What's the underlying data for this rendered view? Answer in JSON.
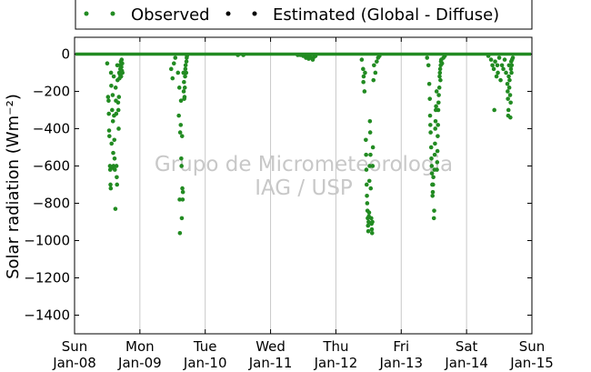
{
  "chart_data": {
    "type": "scatter",
    "ylabel": "Solar radiation (Wm⁻²)",
    "ylim": [
      -1500,
      90
    ],
    "yticks": [
      0,
      -200,
      -400,
      -600,
      -800,
      -1000,
      -1200,
      -1400
    ],
    "xlim": [
      "2012-01-08 00:00",
      "2012-01-15 00:00"
    ],
    "xticks": [
      {
        "value": "2012-01-08",
        "line1": "Sun",
        "line2": "Jan-08"
      },
      {
        "value": "2012-01-09",
        "line1": "Mon",
        "line2": "Jan-09"
      },
      {
        "value": "2012-01-10",
        "line1": "Tue",
        "line2": "Jan-10"
      },
      {
        "value": "2012-01-11",
        "line1": "Wed",
        "line2": "Jan-11"
      },
      {
        "value": "2012-01-12",
        "line1": "Thu",
        "line2": "Jan-12"
      },
      {
        "value": "2012-01-13",
        "line1": "Fri",
        "line2": "Jan-13"
      },
      {
        "value": "2012-01-14",
        "line1": "Sat",
        "line2": "Jan-14"
      },
      {
        "value": "2012-01-15",
        "line1": "Sun",
        "line2": "Jan-15"
      }
    ],
    "grid": "vertical",
    "legend_position": "top-center",
    "series": [
      {
        "name": "Observed",
        "color": "#228b22",
        "daytime_windows": [
          {
            "start": "2012-01-08 07:00",
            "end": "2012-01-08 18:00"
          },
          {
            "start": "2012-01-09 07:00",
            "end": "2012-01-09 18:00"
          },
          {
            "start": "2012-01-10 07:00",
            "end": "2012-01-10 18:00"
          },
          {
            "start": "2012-01-11 07:00",
            "end": "2012-01-11 18:00"
          },
          {
            "start": "2012-01-12 07:00",
            "end": "2012-01-12 18:00"
          },
          {
            "start": "2012-01-13 07:00",
            "end": "2012-01-13 18:00"
          },
          {
            "start": "2012-01-14 07:00",
            "end": "2012-01-14 18:00"
          }
        ],
        "points": [
          [
            "2012-01-08 12:00",
            -50
          ],
          [
            "2012-01-08 12:18",
            -230
          ],
          [
            "2012-01-08 12:30",
            -250
          ],
          [
            "2012-01-08 12:36",
            -320
          ],
          [
            "2012-01-08 12:42",
            -410
          ],
          [
            "2012-01-08 12:48",
            -440
          ],
          [
            "2012-01-08 13:00",
            -600
          ],
          [
            "2012-01-08 13:06",
            -620
          ],
          [
            "2012-01-08 13:12",
            -700
          ],
          [
            "2012-01-08 13:18",
            -720
          ],
          [
            "2012-01-08 13:24",
            -100
          ],
          [
            "2012-01-08 13:30",
            -170
          ],
          [
            "2012-01-08 13:36",
            -480
          ],
          [
            "2012-01-08 13:42",
            -610
          ],
          [
            "2012-01-08 13:48",
            -300
          ],
          [
            "2012-01-08 14:00",
            -220
          ],
          [
            "2012-01-08 14:06",
            -360
          ],
          [
            "2012-01-08 14:12",
            -530
          ],
          [
            "2012-01-08 14:18",
            -600
          ],
          [
            "2012-01-08 14:24",
            -120
          ],
          [
            "2012-01-08 14:30",
            -330
          ],
          [
            "2012-01-08 14:36",
            -460
          ],
          [
            "2012-01-08 14:42",
            -560
          ],
          [
            "2012-01-08 14:48",
            -620
          ],
          [
            "2012-01-08 15:00",
            -830
          ],
          [
            "2012-01-08 15:06",
            -180
          ],
          [
            "2012-01-08 15:12",
            -250
          ],
          [
            "2012-01-08 15:18",
            -320
          ],
          [
            "2012-01-08 15:24",
            -600
          ],
          [
            "2012-01-08 15:30",
            -660
          ],
          [
            "2012-01-08 15:36",
            -700
          ],
          [
            "2012-01-08 15:42",
            -60
          ],
          [
            "2012-01-08 15:48",
            -140
          ],
          [
            "2012-01-08 16:00",
            -260
          ],
          [
            "2012-01-08 16:06",
            -300
          ],
          [
            "2012-01-08 16:12",
            -400
          ],
          [
            "2012-01-08 16:18",
            -230
          ],
          [
            "2012-01-08 16:24",
            -100
          ],
          [
            "2012-01-08 16:30",
            -130
          ],
          [
            "2012-01-08 16:36",
            -60
          ],
          [
            "2012-01-08 16:42",
            -110
          ],
          [
            "2012-01-08 16:48",
            -80
          ],
          [
            "2012-01-08 17:00",
            -40
          ],
          [
            "2012-01-08 17:06",
            -120
          ],
          [
            "2012-01-08 17:12",
            -70
          ],
          [
            "2012-01-08 17:18",
            -30
          ],
          [
            "2012-01-08 17:24",
            -90
          ],
          [
            "2012-01-08 17:30",
            -50
          ],
          [
            "2012-01-08 17:36",
            -100
          ],
          [
            "2012-01-09 11:30",
            -80
          ],
          [
            "2012-01-09 12:00",
            -130
          ],
          [
            "2012-01-09 12:30",
            -50
          ],
          [
            "2012-01-09 13:00",
            -20
          ],
          [
            "2012-01-09 14:00",
            -100
          ],
          [
            "2012-01-09 14:18",
            -330
          ],
          [
            "2012-01-09 14:30",
            -180
          ],
          [
            "2012-01-09 14:36",
            -780
          ],
          [
            "2012-01-09 14:42",
            -960
          ],
          [
            "2012-01-09 14:48",
            -420
          ],
          [
            "2012-01-09 15:00",
            -380
          ],
          [
            "2012-01-09 15:06",
            -250
          ],
          [
            "2012-01-09 15:12",
            -560
          ],
          [
            "2012-01-09 15:18",
            -600
          ],
          [
            "2012-01-09 15:24",
            -880
          ],
          [
            "2012-01-09 15:30",
            -440
          ],
          [
            "2012-01-09 15:36",
            -720
          ],
          [
            "2012-01-09 15:42",
            -780
          ],
          [
            "2012-01-09 15:48",
            -740
          ],
          [
            "2012-01-09 16:00",
            -100
          ],
          [
            "2012-01-09 16:06",
            -200
          ],
          [
            "2012-01-09 16:12",
            -150
          ],
          [
            "2012-01-09 16:18",
            -240
          ],
          [
            "2012-01-09 16:24",
            -230
          ],
          [
            "2012-01-09 16:30",
            -180
          ],
          [
            "2012-01-09 16:36",
            -120
          ],
          [
            "2012-01-09 16:42",
            -80
          ],
          [
            "2012-01-09 16:48",
            -60
          ],
          [
            "2012-01-09 17:00",
            -100
          ],
          [
            "2012-01-09 17:06",
            -40
          ],
          [
            "2012-01-09 17:12",
            -20
          ],
          [
            "2012-01-09 17:18",
            -10
          ],
          [
            "2012-01-10 12:00",
            -5
          ],
          [
            "2012-01-10 14:00",
            -5
          ],
          [
            "2012-01-11 10:00",
            -5
          ],
          [
            "2012-01-11 11:00",
            -5
          ],
          [
            "2012-01-11 12:00",
            -10
          ],
          [
            "2012-01-11 12:30",
            -5
          ],
          [
            "2012-01-11 13:00",
            -20
          ],
          [
            "2012-01-11 13:30",
            -10
          ],
          [
            "2012-01-11 14:00",
            -25
          ],
          [
            "2012-01-11 14:30",
            -15
          ],
          [
            "2012-01-11 15:00",
            -20
          ],
          [
            "2012-01-11 15:30",
            -30
          ],
          [
            "2012-01-11 16:00",
            -15
          ],
          [
            "2012-01-11 16:30",
            -10
          ],
          [
            "2012-01-12 09:30",
            -30
          ],
          [
            "2012-01-12 10:00",
            -80
          ],
          [
            "2012-01-12 10:06",
            -150
          ],
          [
            "2012-01-12 10:12",
            -120
          ],
          [
            "2012-01-12 10:30",
            -200
          ],
          [
            "2012-01-12 10:42",
            -100
          ],
          [
            "2012-01-12 11:00",
            -460
          ],
          [
            "2012-01-12 11:06",
            -540
          ],
          [
            "2012-01-12 11:12",
            -620
          ],
          [
            "2012-01-12 11:18",
            -700
          ],
          [
            "2012-01-12 11:24",
            -760
          ],
          [
            "2012-01-12 11:30",
            -800
          ],
          [
            "2012-01-12 11:36",
            -840
          ],
          [
            "2012-01-12 11:42",
            -880
          ],
          [
            "2012-01-12 11:48",
            -920
          ],
          [
            "2012-01-12 11:54",
            -950
          ],
          [
            "2012-01-12 12:00",
            -900
          ],
          [
            "2012-01-12 12:06",
            -870
          ],
          [
            "2012-01-12 12:12",
            -850
          ],
          [
            "2012-01-12 12:18",
            -680
          ],
          [
            "2012-01-12 12:24",
            -600
          ],
          [
            "2012-01-12 12:30",
            -360
          ],
          [
            "2012-01-12 12:36",
            -420
          ],
          [
            "2012-01-12 12:42",
            -540
          ],
          [
            "2012-01-12 12:48",
            -720
          ],
          [
            "2012-01-12 13:00",
            -880
          ],
          [
            "2012-01-12 13:06",
            -910
          ],
          [
            "2012-01-12 13:12",
            -940
          ],
          [
            "2012-01-12 13:18",
            -960
          ],
          [
            "2012-01-12 13:24",
            -900
          ],
          [
            "2012-01-12 13:30",
            -600
          ],
          [
            "2012-01-12 13:36",
            -500
          ],
          [
            "2012-01-12 13:48",
            -140
          ],
          [
            "2012-01-12 14:00",
            -60
          ],
          [
            "2012-01-12 14:30",
            -100
          ],
          [
            "2012-01-12 15:00",
            -40
          ],
          [
            "2012-01-12 15:30",
            -20
          ],
          [
            "2012-01-12 16:00",
            -10
          ],
          [
            "2012-01-13 09:30",
            -20
          ],
          [
            "2012-01-13 10:00",
            -60
          ],
          [
            "2012-01-13 10:18",
            -160
          ],
          [
            "2012-01-13 10:30",
            -240
          ],
          [
            "2012-01-13 10:36",
            -330
          ],
          [
            "2012-01-13 10:42",
            -380
          ],
          [
            "2012-01-13 10:48",
            -420
          ],
          [
            "2012-01-13 11:00",
            -500
          ],
          [
            "2012-01-13 11:06",
            -560
          ],
          [
            "2012-01-13 11:12",
            -600
          ],
          [
            "2012-01-13 11:18",
            -640
          ],
          [
            "2012-01-13 11:24",
            -700
          ],
          [
            "2012-01-13 11:30",
            -760
          ],
          [
            "2012-01-13 11:36",
            -740
          ],
          [
            "2012-01-13 11:42",
            -700
          ],
          [
            "2012-01-13 11:48",
            -660
          ],
          [
            "2012-01-13 12:00",
            -880
          ],
          [
            "2012-01-13 12:06",
            -840
          ],
          [
            "2012-01-13 12:12",
            -620
          ],
          [
            "2012-01-13 12:18",
            -540
          ],
          [
            "2012-01-13 12:24",
            -480
          ],
          [
            "2012-01-13 12:30",
            -400
          ],
          [
            "2012-01-13 12:36",
            -360
          ],
          [
            "2012-01-13 12:42",
            -300
          ],
          [
            "2012-01-13 12:48",
            -280
          ],
          [
            "2012-01-13 13:00",
            -200
          ],
          [
            "2012-01-13 13:06",
            -620
          ],
          [
            "2012-01-13 13:12",
            -580
          ],
          [
            "2012-01-13 13:18",
            -520
          ],
          [
            "2012-01-13 13:24",
            -440
          ],
          [
            "2012-01-13 13:30",
            -380
          ],
          [
            "2012-01-13 13:36",
            -300
          ],
          [
            "2012-01-13 13:42",
            -260
          ],
          [
            "2012-01-13 13:48",
            -220
          ],
          [
            "2012-01-13 14:00",
            -180
          ],
          [
            "2012-01-13 14:06",
            -120
          ],
          [
            "2012-01-13 14:12",
            -100
          ],
          [
            "2012-01-13 14:18",
            -80
          ],
          [
            "2012-01-13 14:24",
            -140
          ],
          [
            "2012-01-13 14:30",
            -60
          ],
          [
            "2012-01-13 14:36",
            -40
          ],
          [
            "2012-01-13 14:42",
            -30
          ],
          [
            "2012-01-13 15:00",
            -50
          ],
          [
            "2012-01-13 15:30",
            -20
          ],
          [
            "2012-01-13 16:00",
            -10
          ],
          [
            "2012-01-14 08:00",
            -10
          ],
          [
            "2012-01-14 09:00",
            -30
          ],
          [
            "2012-01-14 09:30",
            -60
          ],
          [
            "2012-01-14 10:00",
            -80
          ],
          [
            "2012-01-14 10:12",
            -300
          ],
          [
            "2012-01-14 10:30",
            -40
          ],
          [
            "2012-01-14 11:00",
            -120
          ],
          [
            "2012-01-14 11:18",
            -60
          ],
          [
            "2012-01-14 11:30",
            -100
          ],
          [
            "2012-01-14 12:00",
            -20
          ],
          [
            "2012-01-14 12:30",
            -140
          ],
          [
            "2012-01-14 13:00",
            -60
          ],
          [
            "2012-01-14 13:30",
            -80
          ],
          [
            "2012-01-14 14:00",
            -30
          ],
          [
            "2012-01-14 14:30",
            -100
          ],
          [
            "2012-01-14 15:00",
            -160
          ],
          [
            "2012-01-14 15:06",
            -200
          ],
          [
            "2012-01-14 15:12",
            -240
          ],
          [
            "2012-01-14 15:18",
            -330
          ],
          [
            "2012-01-14 15:24",
            -300
          ],
          [
            "2012-01-14 15:30",
            -120
          ],
          [
            "2012-01-14 15:36",
            -60
          ],
          [
            "2012-01-14 15:42",
            -180
          ],
          [
            "2012-01-14 15:48",
            -140
          ],
          [
            "2012-01-14 16:00",
            -220
          ],
          [
            "2012-01-14 16:06",
            -340
          ],
          [
            "2012-01-14 16:12",
            -260
          ],
          [
            "2012-01-14 16:18",
            -80
          ],
          [
            "2012-01-14 16:24",
            -40
          ],
          [
            "2012-01-14 16:30",
            -100
          ],
          [
            "2012-01-14 16:36",
            -60
          ],
          [
            "2012-01-14 16:42",
            -30
          ],
          [
            "2012-01-14 17:00",
            -20
          ]
        ]
      },
      {
        "name": "Estimated (Global - Diffuse)",
        "color": "#000000",
        "points": [
          [
            "2012-01-08 00:00",
            0
          ],
          [
            "2012-01-15 00:00",
            0
          ]
        ]
      }
    ]
  },
  "legend": {
    "observed_label": "Observed",
    "estimated_label": "Estimated (Global - Diffuse)"
  },
  "watermark": {
    "line1": "Grupo de Micrometeorologia",
    "line2": "IAG / USP"
  }
}
